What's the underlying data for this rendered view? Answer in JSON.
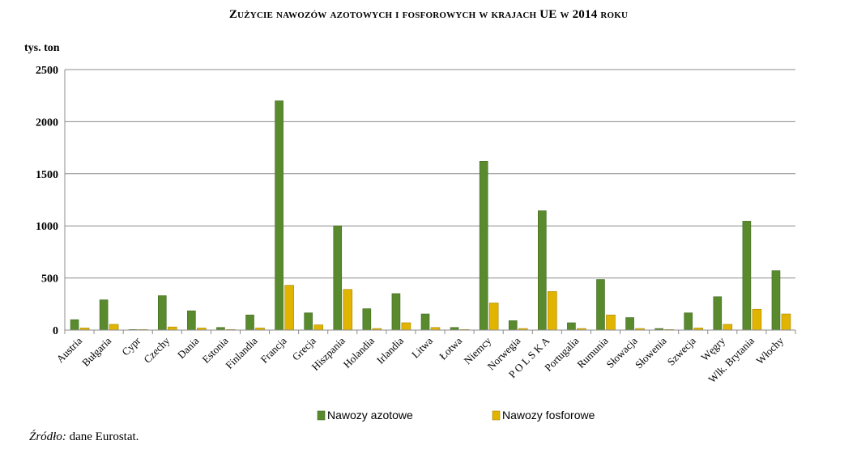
{
  "chart_data": {
    "type": "bar",
    "title": "Zużycie nawozów azotowych i fosforowych w krajach UE w 2014 roku",
    "ylabel": "tys. ton",
    "ylim": [
      0,
      2500
    ],
    "yticks": [
      0,
      500,
      1000,
      1500,
      2000,
      2500
    ],
    "grid": true,
    "legend": "bottom",
    "categories": [
      "Austria",
      "Bułgaria",
      "Cypr",
      "Czechy",
      "Dania",
      "Estonia",
      "Finlandia",
      "Francja",
      "Grecja",
      "Hiszpania",
      "Holandia",
      "Irlandia",
      "Litwa",
      "Łotwa",
      "Niemcy",
      "Norwegia",
      "P O L S K A",
      "Portugalia",
      "Rumunia",
      "Słowacja",
      "Słowenia",
      "Szwecja",
      "Węgry",
      "Wlk. Brytania",
      "Włochy"
    ],
    "series": [
      {
        "name": "Nawozy azotowe",
        "color": "#5a8a2e",
        "values": [
          100,
          290,
          5,
          330,
          185,
          25,
          145,
          2200,
          165,
          1000,
          205,
          350,
          155,
          25,
          1620,
          90,
          1145,
          70,
          485,
          120,
          15,
          165,
          320,
          1045,
          570
        ]
      },
      {
        "name": "Nawozy fosforowe",
        "color": "#e0b400",
        "values": [
          20,
          55,
          5,
          30,
          20,
          5,
          20,
          430,
          50,
          390,
          15,
          70,
          25,
          5,
          260,
          15,
          370,
          15,
          145,
          15,
          5,
          20,
          55,
          200,
          155
        ]
      }
    ]
  },
  "header": {
    "title": "Zużycie nawozów azotowych i fosforowych w krajach UE w 2014 roku",
    "unit": "tys. ton"
  },
  "footer": {
    "source_label": "Źródło:",
    "source_text": " dane Eurostat."
  }
}
